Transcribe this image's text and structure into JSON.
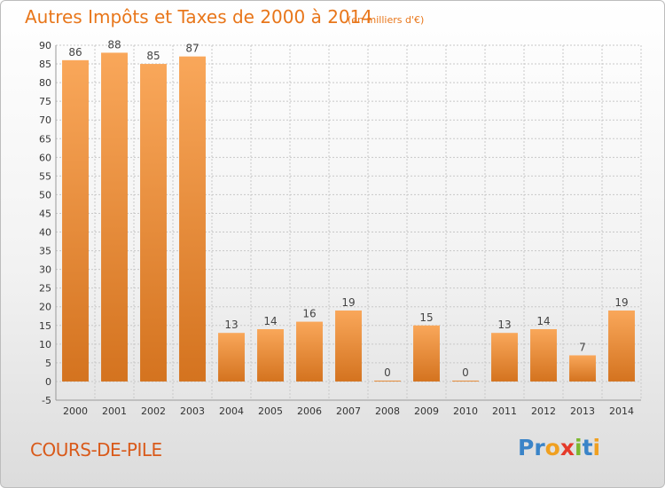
{
  "header": {
    "title": "Autres Impôts et Taxes de 2000 à 2014",
    "subtitle": "(en milliers d'€)"
  },
  "footer": {
    "commune": "COURS-DE-PILE",
    "logo": {
      "part1": "Pr",
      "part2": "o",
      "part3": "x",
      "part4": "i",
      "part5": "t",
      "part6": "i"
    }
  },
  "colors": {
    "bar_light": "#f9a75a",
    "bar_dark": "#d4731f",
    "title": "#e8761a",
    "grid": "#c8c8c8"
  },
  "chart_data": {
    "type": "bar",
    "title": "Autres Impôts et Taxes de 2000 à 2014",
    "subtitle": "(en milliers d'€)",
    "xlabel": "",
    "ylabel": "",
    "categories": [
      "2000",
      "2001",
      "2002",
      "2003",
      "2004",
      "2005",
      "2006",
      "2007",
      "2008",
      "2009",
      "2010",
      "2011",
      "2012",
      "2013",
      "2014"
    ],
    "values": [
      86,
      88,
      85,
      87,
      13,
      14,
      16,
      19,
      0,
      15,
      0,
      13,
      14,
      7,
      19
    ],
    "ylim": [
      -5,
      90
    ],
    "yticks": [
      -5,
      0,
      5,
      10,
      15,
      20,
      25,
      30,
      35,
      40,
      45,
      50,
      55,
      60,
      65,
      70,
      75,
      80,
      85,
      90
    ],
    "grid": true,
    "data_labels": true
  }
}
